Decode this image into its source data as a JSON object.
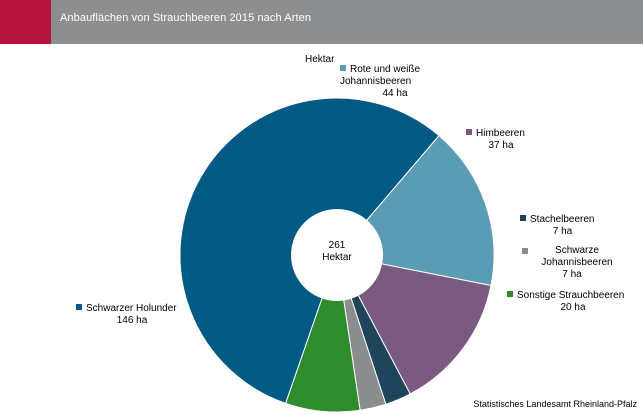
{
  "header": {
    "title": "Anbauflächen von Strauchbeeren 2015 nach Arten"
  },
  "chart_data": {
    "type": "pie",
    "title": "Anbauflächen von Strauchbeeren 2015 nach Arten",
    "unit_label": "Hektar",
    "total": {
      "value": "261",
      "unit": "Hektar"
    },
    "slices": [
      {
        "name": "Rote und weiße Johannisbeeren",
        "value": 44,
        "label": "44 ha",
        "color": "#5b9cb5"
      },
      {
        "name": "Himbeeren",
        "value": 37,
        "label": "37 ha",
        "color": "#7b5a82"
      },
      {
        "name": "Stachelbeeren",
        "value": 7,
        "label": "7 ha",
        "color": "#1e4559"
      },
      {
        "name": "Schwarze Johannisbeeren",
        "value": 7,
        "label": "7 ha",
        "color": "#8b8c8e"
      },
      {
        "name": "Sonstige Strauchbeeren",
        "value": 20,
        "label": "20 ha",
        "color": "#2e8b2e"
      },
      {
        "name": "Schwarzer Holunder",
        "value": 146,
        "label": "146 ha",
        "color": "#005a84"
      }
    ]
  },
  "source": "Statistisches Landesamt Rheinland-Pfalz"
}
